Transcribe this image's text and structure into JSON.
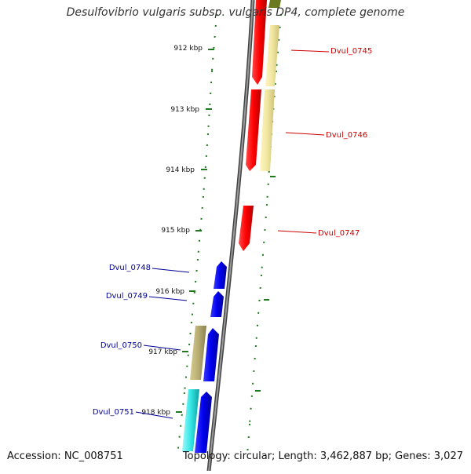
{
  "title": "Desulfovibrio vulgaris subsp. vulgaris DP4, complete genome",
  "footer": {
    "accession": "Accession: NC_008751",
    "summary": "Topology: circular; Length: 3,462,887 bp; Genes: 3,027"
  },
  "colors": {
    "forward_cds": "#ff0000",
    "reverse_cds": "#0000ee",
    "other_gene_yellow": "#f0e6a0",
    "other_gene_olive": "#b8ad72",
    "other_gene_cyan": "#33e6e6",
    "tick_green": "#1f7a1f",
    "backbone": "#777777",
    "forward_label": "#cc0000",
    "reverse_label": "#000099"
  },
  "ticks": [
    "912 kbp",
    "913 kbp",
    "914 kbp",
    "915 kbp",
    "916 kbp",
    "917 kbp",
    "918 kbp"
  ],
  "genes": {
    "forward": [
      "Dvul_0745",
      "Dvul_0746",
      "Dvul_0747"
    ],
    "reverse": [
      "Dvul_0748",
      "Dvul_0749",
      "Dvul_0750",
      "Dvul_0751"
    ]
  }
}
